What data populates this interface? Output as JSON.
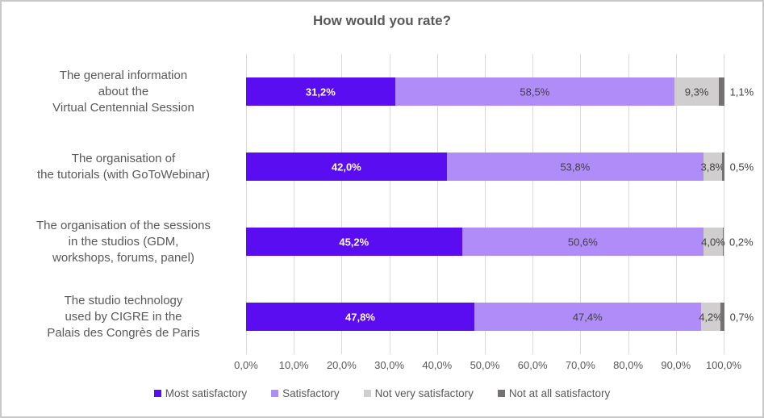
{
  "title": "How would you rate?",
  "chart_data": {
    "type": "bar",
    "orientation": "horizontal",
    "stacked": true,
    "title": "How would you rate?",
    "categories": [
      [
        "The general information",
        "about the",
        "Virtual Centennial Session"
      ],
      [
        "The organisation of",
        "the tutorials (with GoToWebinar)"
      ],
      [
        "The organisation of the sessions",
        "in the studios (GDM,",
        "workshops, forums, panel)"
      ],
      [
        "The studio technology",
        "used by CIGRE in the",
        "Palais des Congrès de Paris"
      ]
    ],
    "series": [
      {
        "name": "Most satisfactory",
        "color": "#5a0df0",
        "label_color": "#ffffff",
        "label_bold": true,
        "label_outside": false,
        "values": [
          31.2,
          42.0,
          45.2,
          47.8
        ],
        "labels": [
          "31,2%",
          "42,0%",
          "45,2%",
          "47,8%"
        ]
      },
      {
        "name": "Satisfactory",
        "color": "#b08cf8",
        "label_color": "#404040",
        "label_bold": false,
        "label_outside": false,
        "values": [
          58.5,
          53.8,
          50.6,
          47.4
        ],
        "labels": [
          "58,5%",
          "53,8%",
          "50,6%",
          "47,4%"
        ]
      },
      {
        "name": "Not very satisfactory",
        "color": "#d0cece",
        "label_color": "#404040",
        "label_bold": false,
        "label_outside": false,
        "values": [
          9.3,
          3.8,
          4.0,
          4.2
        ],
        "labels": [
          "9,3%",
          "3,8%",
          "4,0%",
          "4,2%"
        ]
      },
      {
        "name": "Not at all satisfactory",
        "color": "#757171",
        "label_color": "#404040",
        "label_bold": false,
        "label_outside": true,
        "values": [
          1.1,
          0.5,
          0.2,
          0.7
        ],
        "labels": [
          "1,1%",
          "0,5%",
          "0,2%",
          "0,7%"
        ]
      }
    ],
    "x_ticks": [
      "0,0%",
      "10,0%",
      "20,0%",
      "30,0%",
      "40,0%",
      "50,0%",
      "60,0%",
      "70,0%",
      "80,0%",
      "90,0%",
      "100,0%"
    ],
    "xlim": [
      0,
      100
    ],
    "grid": true,
    "legend_position": "bottom"
  },
  "colors": {
    "gridline": "#d9d9d9",
    "axis_text": "#595959",
    "title_text": "#595959",
    "category_text": "#595959",
    "frame_border": "#c9c9c9",
    "background": "#ffffff"
  }
}
